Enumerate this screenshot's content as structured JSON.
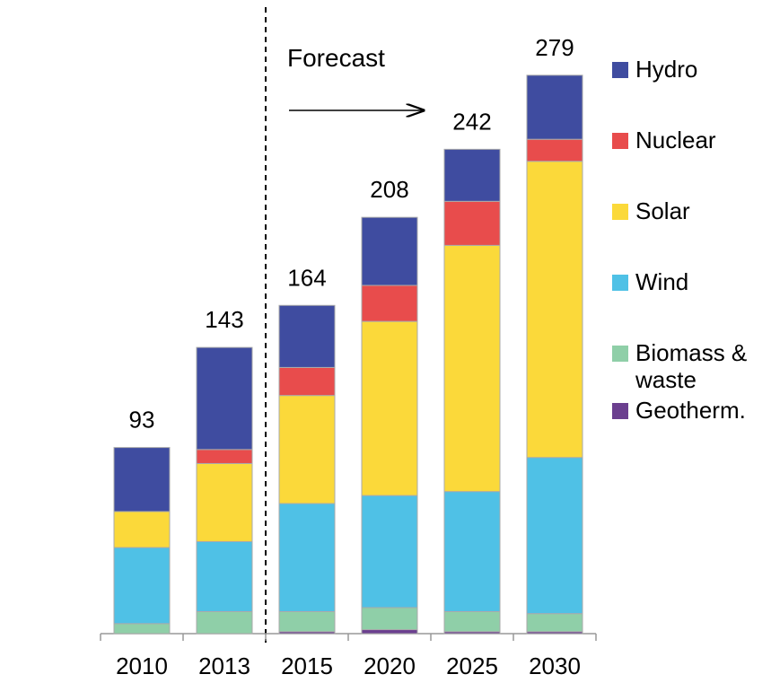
{
  "chart_data": {
    "type": "stacked-bar",
    "annotation": "Forecast",
    "categories": [
      "2010",
      "2013",
      "2015",
      "2020",
      "2025",
      "2030"
    ],
    "totals": [
      93,
      143,
      164,
      208,
      242,
      279
    ],
    "series": [
      {
        "name": "Geotherm.",
        "color": "#6b3f8f",
        "values": [
          0,
          0,
          1,
          2,
          1,
          1
        ]
      },
      {
        "name": "Biomass & waste",
        "color": "#8fcfa8",
        "values": [
          5,
          11,
          10,
          11,
          10,
          9
        ]
      },
      {
        "name": "Wind",
        "color": "#4fc1e6",
        "values": [
          38,
          35,
          54,
          56,
          60,
          78
        ]
      },
      {
        "name": "Solar",
        "color": "#fbd93a",
        "values": [
          18,
          39,
          54,
          87,
          123,
          148
        ]
      },
      {
        "name": "Nuclear",
        "color": "#e84c4c",
        "values": [
          0,
          7,
          14,
          18,
          22,
          11
        ]
      },
      {
        "name": "Hydro",
        "color": "#3f4ca0",
        "values": [
          32,
          51,
          31,
          34,
          26,
          32
        ]
      }
    ]
  }
}
